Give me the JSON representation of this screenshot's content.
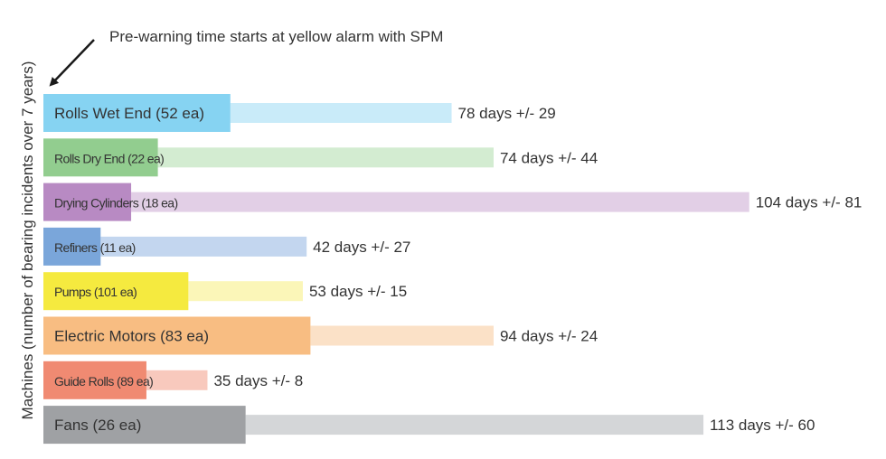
{
  "chart_data": {
    "type": "bar",
    "annotation": "Pre-warning time starts at yellow alarm with SPM",
    "ylabel": "Machines (number of bearing incidents over 7 years)",
    "categories": [
      "Rolls Wet End (52 ea)",
      "Rolls Dry End (22 ea)",
      "Drying Cylinders (18 ea)",
      "Refiners (11 ea)",
      "Pumps (101 ea)",
      "Electric Motors (83 ea)",
      "Guide Rolls (89 ea)",
      "Fans (26 ea)"
    ],
    "mean_days": [
      78,
      74,
      104,
      42,
      53,
      94,
      35,
      113
    ],
    "std_days": [
      29,
      44,
      81,
      27,
      15,
      24,
      8,
      60
    ],
    "value_labels": [
      "78 days +/- 29",
      "74 days +/- 44",
      "104 days +/- 81",
      "42 days +/- 27",
      "53 days +/- 15",
      "94 days +/- 24",
      "35 days +/- 8",
      "113 days +/- 60"
    ],
    "colors": [
      {
        "main": "#86d3f2",
        "light": "#c9ebf9"
      },
      {
        "main": "#92cd8f",
        "light": "#d3ecd1"
      },
      {
        "main": "#b88ac3",
        "light": "#e2cfe6"
      },
      {
        "main": "#7aa6da",
        "light": "#c3d6ef"
      },
      {
        "main": "#f5ea3f",
        "light": "#fbf6b8"
      },
      {
        "main": "#f8bd82",
        "light": "#fbe1c7"
      },
      {
        "main": "#f08a72",
        "light": "#f8c9bd"
      },
      {
        "main": "#9fa1a4",
        "light": "#d4d6d8"
      }
    ]
  }
}
